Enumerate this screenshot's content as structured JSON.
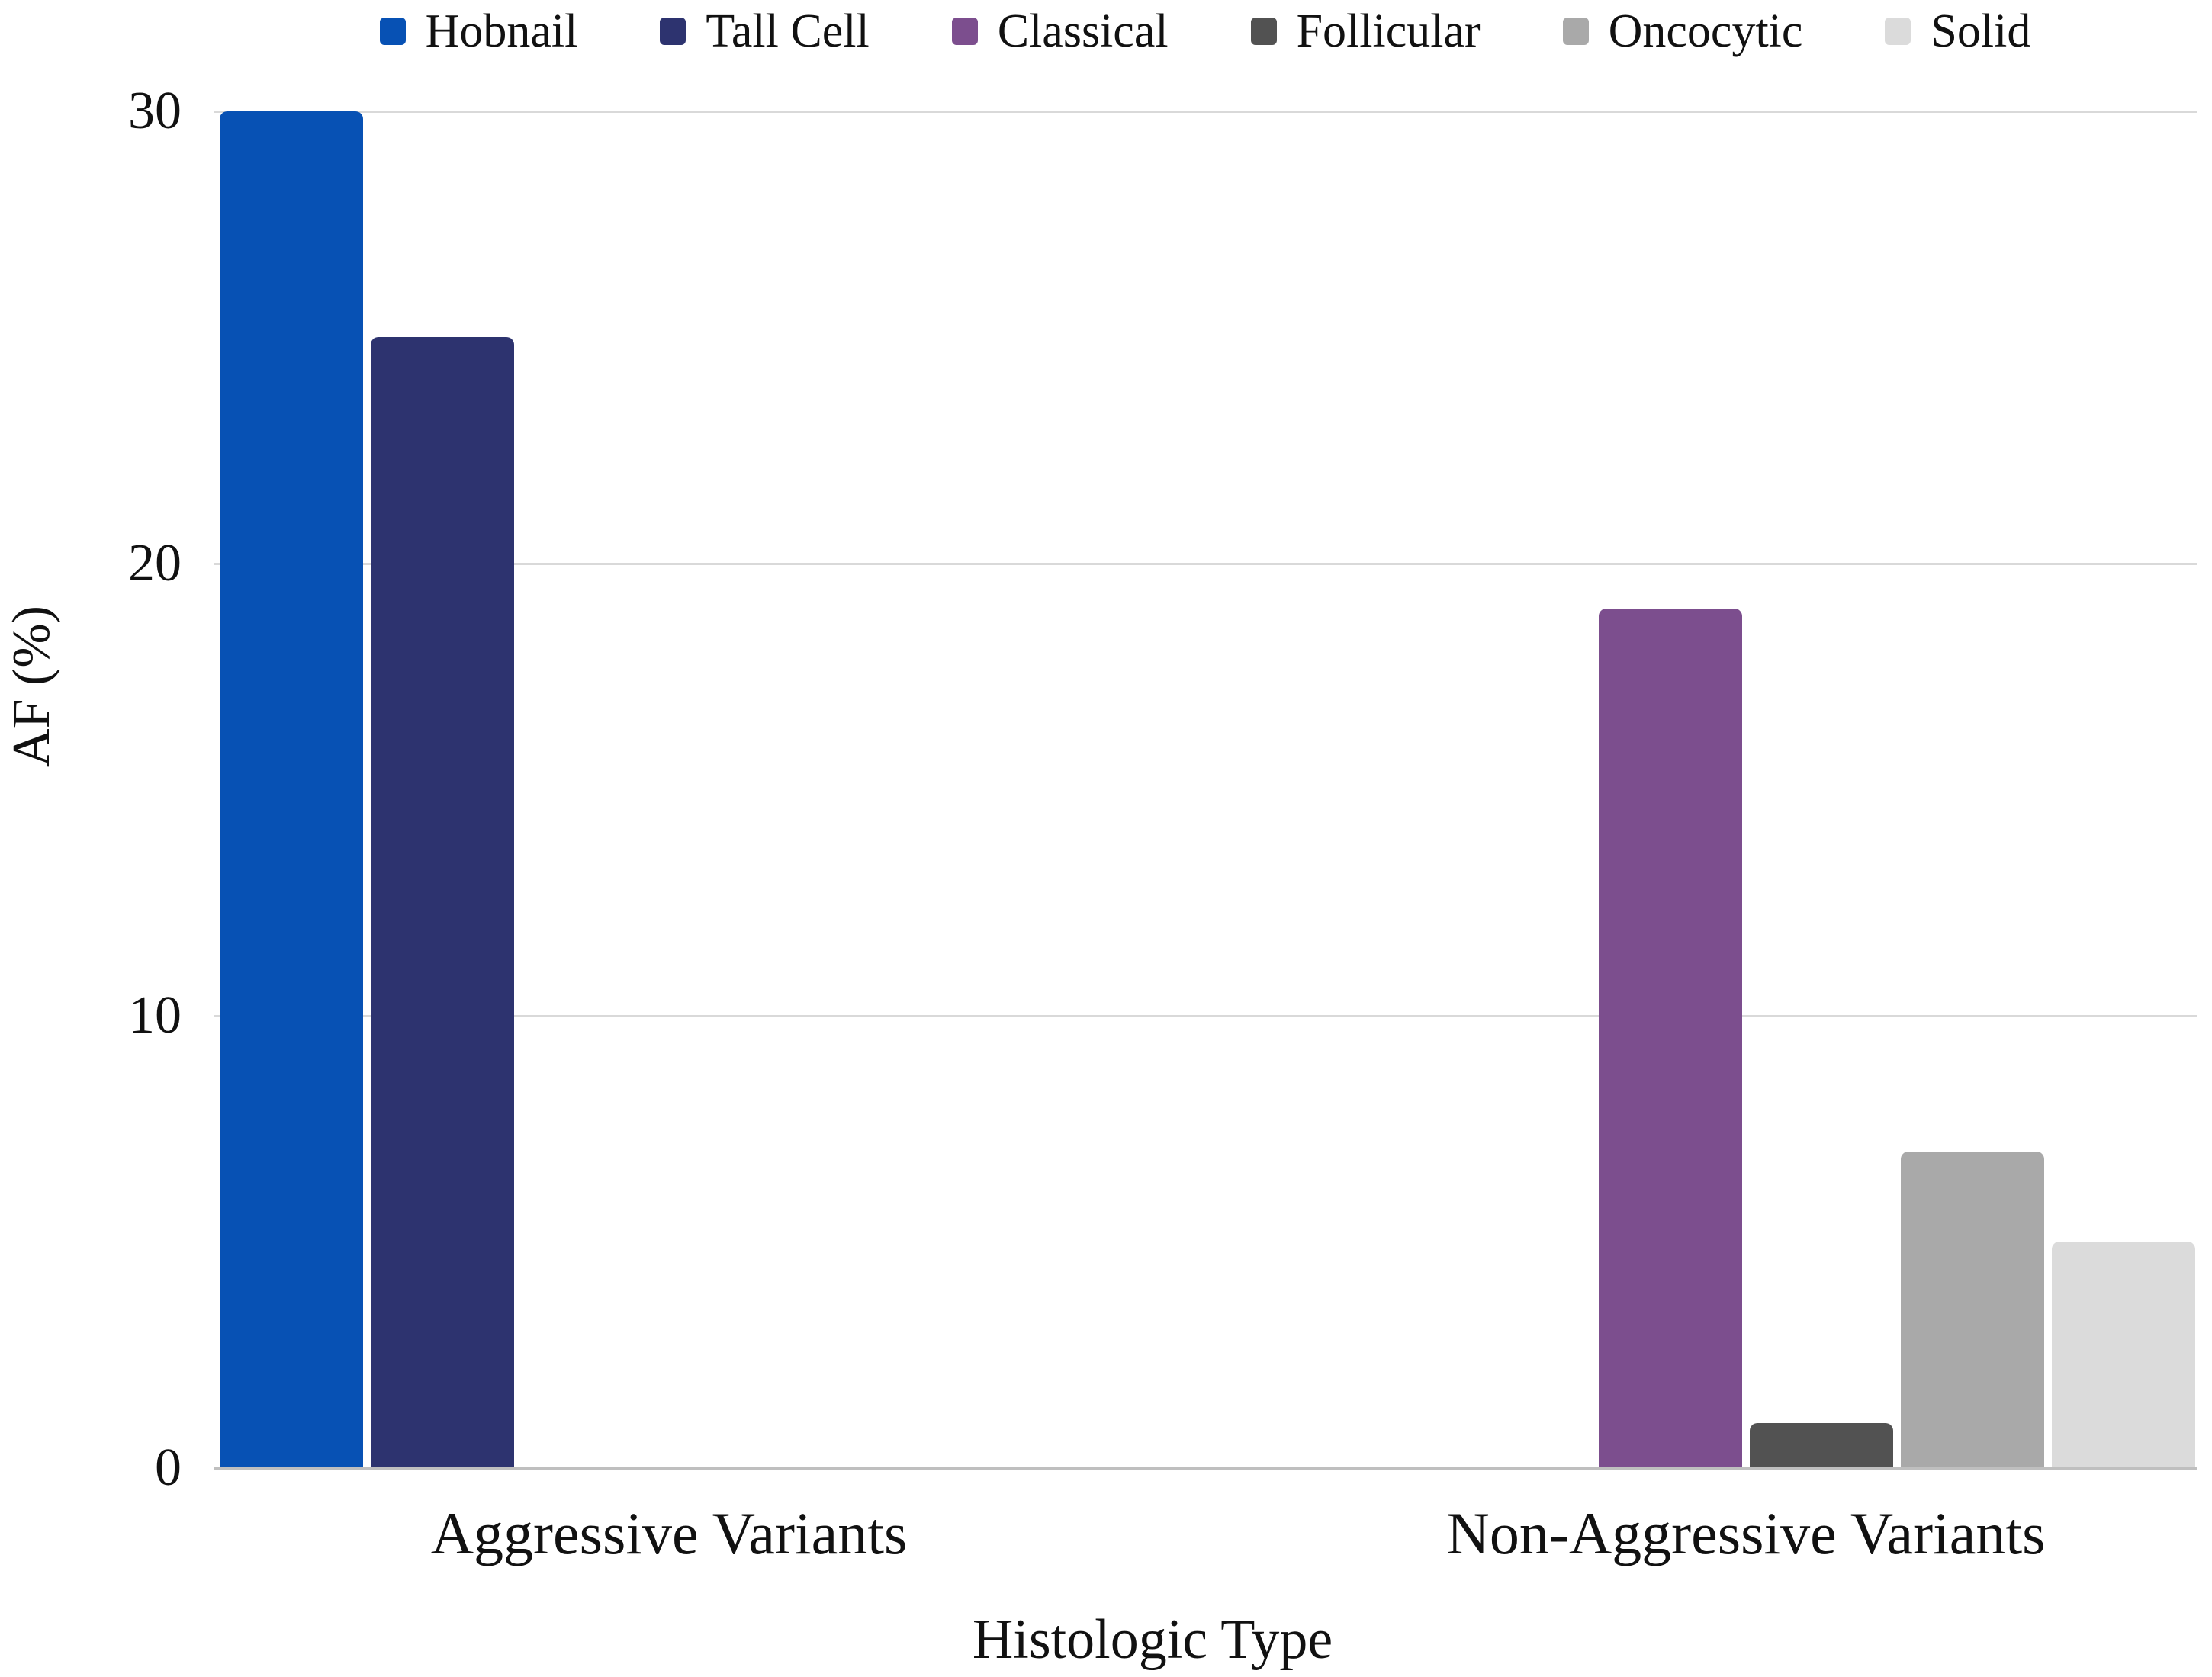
{
  "chart_data": {
    "type": "bar",
    "title": "",
    "xlabel": "Histologic Type",
    "ylabel": "AF (%)",
    "categories": [
      "Aggressive Variants",
      "Non-Aggressive Variants"
    ],
    "series": [
      {
        "name": "Hobnail",
        "color": "#0751B4",
        "values": [
          30,
          0
        ]
      },
      {
        "name": "Tall Cell",
        "color": "#2D336F",
        "values": [
          25,
          0
        ]
      },
      {
        "name": "Classical",
        "color": "#7C4E8E",
        "values": [
          0,
          19
        ]
      },
      {
        "name": "Follicular",
        "color": "#525252",
        "values": [
          0,
          1
        ]
      },
      {
        "name": "Oncocytic",
        "color": "#A9A9A9",
        "values": [
          0,
          7
        ]
      },
      {
        "name": "Solid",
        "color": "#DBDBDB",
        "values": [
          0,
          5
        ]
      }
    ],
    "ylim": [
      0,
      30
    ],
    "yticks": [
      0,
      10,
      20,
      30
    ],
    "grid": true,
    "legend_position": "top"
  },
  "colors": {
    "gridline": "#d9d9d9",
    "axis_line": "#bfbfbf",
    "text": "#111111",
    "background": "#ffffff"
  }
}
